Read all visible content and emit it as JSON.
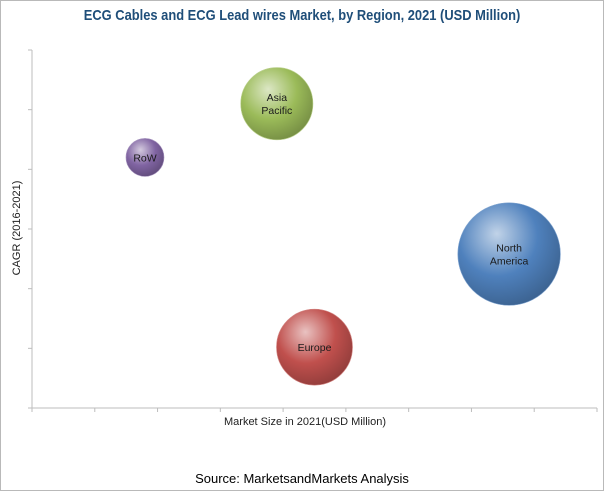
{
  "chart_data": {
    "type": "scatter",
    "title": "ECG Cables and ECG Lead wires Market, by Region, 2021 (USD Million)",
    "xlabel": "Market Size in 2021(USD Million)",
    "ylabel": "CAGR (2016-2021)",
    "x_tick_labels": "none",
    "y_tick_labels": "none",
    "grid": false,
    "legend": "none",
    "series": [
      {
        "label": "RoW",
        "x": 1.8,
        "y": 7.0,
        "size": 1.0,
        "color": "#8064a2"
      },
      {
        "label": "Asia\nPacific",
        "x": 3.9,
        "y": 8.5,
        "size": 1.9,
        "color": "#9bbb59"
      },
      {
        "label": "North\nAmerica",
        "x": 7.6,
        "y": 4.3,
        "size": 2.7,
        "color": "#4f81bd"
      },
      {
        "label": "Europe",
        "x": 4.5,
        "y": 1.7,
        "size": 2.0,
        "color": "#c0504d"
      }
    ]
  },
  "source": "Source: MarketsandMarkets Analysis"
}
